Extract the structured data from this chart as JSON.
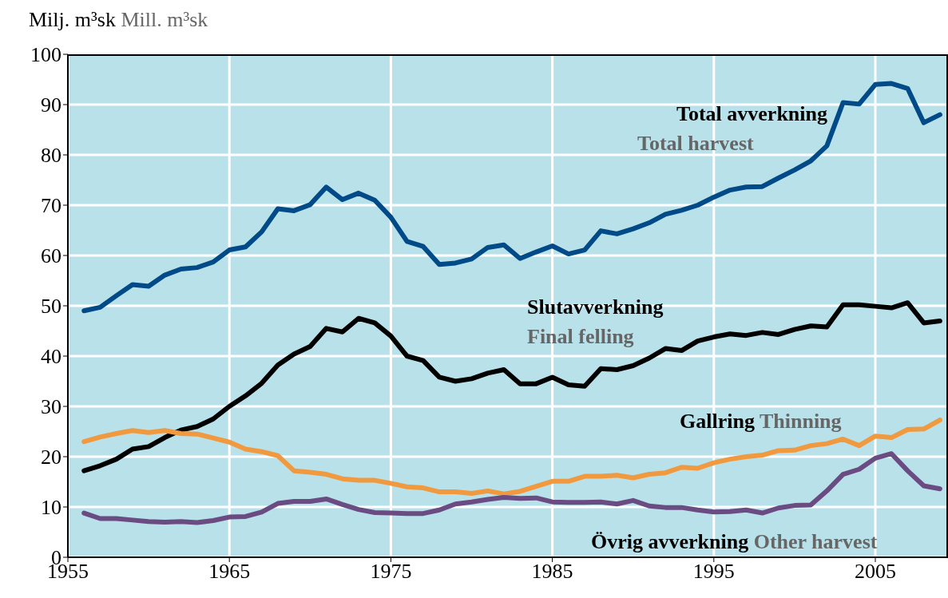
{
  "chart_data": {
    "type": "line",
    "ylabel": "Milj. m³sk",
    "x": [
      1956,
      1957,
      1958,
      1959,
      1960,
      1961,
      1962,
      1963,
      1964,
      1965,
      1966,
      1967,
      1968,
      1969,
      1970,
      1971,
      1972,
      1973,
      1974,
      1975,
      1976,
      1977,
      1978,
      1979,
      1980,
      1981,
      1982,
      1983,
      1984,
      1985,
      1986,
      1987,
      1988,
      1989,
      1990,
      1991,
      1992,
      1993,
      1994,
      1995,
      1996,
      1997,
      1998,
      1999,
      2000,
      2001,
      2002,
      2003,
      2004,
      2005,
      2006,
      2007,
      2008,
      2009
    ],
    "series": [
      {
        "name": "Total avverkning",
        "color": "#004a87",
        "values": [
          49,
          49.7,
          52,
          54.2,
          53.9,
          56.1,
          57.3,
          57.6,
          58.7,
          61.1,
          61.7,
          64.7,
          69.3,
          68.9,
          70.1,
          73.6,
          71.1,
          72.4,
          71,
          67.6,
          62.8,
          61.8,
          58.2,
          58.5,
          59.3,
          61.6,
          62.1,
          59.4,
          60.7,
          61.9,
          60.3,
          61.1,
          64.9,
          64.3,
          65.3,
          66.5,
          68.2,
          69,
          70,
          71.6,
          73,
          73.6,
          73.7,
          75.4,
          77,
          78.8,
          81.8,
          90.4,
          90.1,
          94,
          94.2,
          93.2,
          86.4,
          88
        ]
      },
      {
        "name": "Slutavverkning",
        "color": "#000000",
        "values": [
          17.2,
          18.2,
          19.5,
          21.5,
          22,
          23.8,
          25.3,
          26,
          27.5,
          30,
          32.1,
          34.6,
          38.2,
          40.4,
          41.9,
          45.5,
          44.8,
          47.5,
          46.6,
          44,
          40,
          39.1,
          35.8,
          35,
          35.5,
          36.6,
          37.3,
          34.5,
          34.5,
          35.8,
          34.3,
          34,
          37.5,
          37.3,
          38.1,
          39.6,
          41.5,
          41.1,
          43,
          43.8,
          44.4,
          44.1,
          44.7,
          44.3,
          45.3,
          46,
          45.8,
          50.2,
          50.2,
          49.9,
          49.6,
          50.6,
          46.6,
          47
        ]
      },
      {
        "name": "Gallring",
        "color": "#f0993f",
        "values": [
          23,
          23.9,
          24.6,
          25.2,
          24.8,
          25.2,
          24.6,
          24.5,
          23.7,
          22.9,
          21.5,
          21,
          20.2,
          17.2,
          16.9,
          16.5,
          15.6,
          15.3,
          15.3,
          14.7,
          14,
          13.8,
          13,
          13,
          12.7,
          13.2,
          12.6,
          13.1,
          14.1,
          15.1,
          15.1,
          16.1,
          16.1,
          16.3,
          15.8,
          16.5,
          16.8,
          17.9,
          17.7,
          18.8,
          19.5,
          20,
          20.3,
          21.2,
          21.3,
          22.2,
          22.6,
          23.5,
          22.2,
          24.1,
          23.8,
          25.4,
          25.5,
          27.3
        ]
      },
      {
        "name": "Övrig avverkning",
        "color": "#6a4c82",
        "values": [
          8.8,
          7.7,
          7.7,
          7.4,
          7.1,
          7,
          7.1,
          6.9,
          7.3,
          8,
          8.1,
          9,
          10.7,
          11.1,
          11.1,
          11.6,
          10.5,
          9.5,
          8.9,
          8.8,
          8.7,
          8.7,
          9.4,
          10.6,
          11,
          11.5,
          11.9,
          11.7,
          11.8,
          11,
          10.9,
          10.9,
          11,
          10.6,
          11.3,
          10.2,
          9.9,
          9.9,
          9.4,
          9,
          9.1,
          9.4,
          8.8,
          9.8,
          10.3,
          10.4,
          13.2,
          16.5,
          17.5,
          19.7,
          20.6,
          17.2,
          14.2,
          13.6
        ]
      }
    ],
    "annotations": [
      "Mill. m³sk",
      "Total harvest",
      "Final felling",
      "Thinning",
      "Other harvest"
    ],
    "xlim": [
      1955,
      2009.5
    ],
    "xticks": [
      1955,
      1965,
      1975,
      1985,
      1995,
      2005
    ],
    "ylim": [
      0,
      100
    ],
    "yticks": [
      0,
      10,
      20,
      30,
      40,
      50,
      60,
      70,
      80,
      90,
      100
    ],
    "grid": true,
    "legend": false,
    "marker": "none",
    "line_style": "solid"
  }
}
